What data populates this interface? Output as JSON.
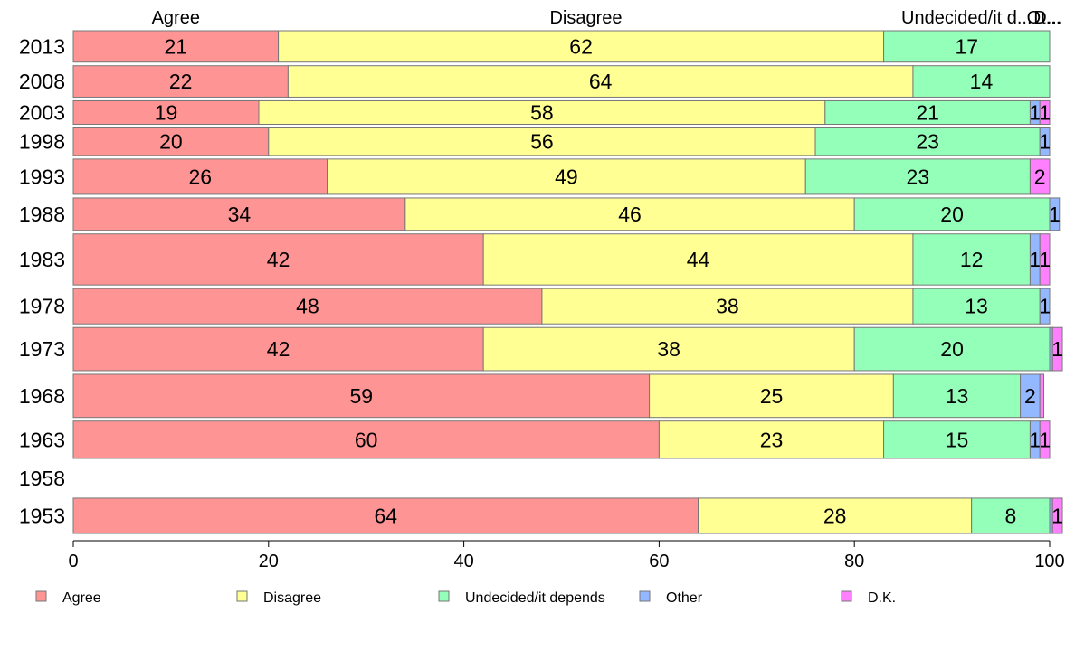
{
  "chart_data": {
    "type": "bar",
    "orientation": "horizontal",
    "stacked": true,
    "normalized_percent": true,
    "categories": [
      "2013",
      "2008",
      "2003",
      "1998",
      "1993",
      "1988",
      "1983",
      "1978",
      "1973",
      "1968",
      "1963",
      "1958",
      "1953"
    ],
    "series": [
      {
        "name": "Agree",
        "color": "#ff9494",
        "values": [
          21,
          22,
          19,
          20,
          26,
          34,
          42,
          48,
          42,
          59,
          60,
          null,
          64
        ]
      },
      {
        "name": "Disagree",
        "color": "#ffff94",
        "values": [
          62,
          64,
          58,
          56,
          49,
          46,
          44,
          38,
          38,
          25,
          23,
          null,
          28
        ]
      },
      {
        "name": "Undecided/it depends",
        "color": "#94ffb8",
        "values": [
          17,
          14,
          21,
          23,
          23,
          20,
          12,
          13,
          20,
          13,
          15,
          null,
          8
        ]
      },
      {
        "name": "Other",
        "color": "#94b8ff",
        "values": [
          0,
          0,
          1,
          1,
          0,
          1,
          1,
          1,
          0.3,
          2,
          1,
          null,
          0.3
        ]
      },
      {
        "name": "D.K.",
        "color": "#ff80ff",
        "values": [
          0,
          0,
          1,
          0,
          2,
          0,
          1,
          0,
          1,
          0.4,
          1,
          null,
          1
        ]
      }
    ],
    "data_labels": [
      [
        "21",
        "62",
        "17",
        "",
        ""
      ],
      [
        "22",
        "64",
        "14",
        "",
        ""
      ],
      [
        "19",
        "58",
        "21",
        "1",
        "1"
      ],
      [
        "20",
        "56",
        "23",
        "1",
        ""
      ],
      [
        "26",
        "49",
        "23",
        "",
        "2"
      ],
      [
        "34",
        "46",
        "20",
        "1",
        ""
      ],
      [
        "42",
        "44",
        "12",
        "1",
        "1"
      ],
      [
        "48",
        "38",
        "13",
        "1",
        ""
      ],
      [
        "42",
        "38",
        "20",
        "",
        "1"
      ],
      [
        "59",
        "25",
        "13",
        "2",
        ""
      ],
      [
        "60",
        "23",
        "15",
        "1",
        "1"
      ],
      [
        "",
        "",
        "",
        "",
        ""
      ],
      [
        "64",
        "28",
        "8",
        "",
        "1"
      ]
    ],
    "relative_bar_weights": [
      32,
      32,
      24,
      28,
      36,
      33,
      52,
      36,
      44,
      44,
      38,
      0,
      36
    ],
    "top_labels": [
      {
        "text": "Agree",
        "at": 10.5
      },
      {
        "text": "Disagree",
        "at": 52.5
      },
      {
        "text": "Undecided/it d...",
        "at": 91.5
      },
      {
        "text": "Ot...",
        "at": 99.4
      },
      {
        "text": "D...",
        "at": 99.8
      }
    ],
    "xlim": [
      0,
      100
    ],
    "xticks": [
      0,
      20,
      40,
      60,
      80,
      100
    ],
    "legend_position": "bottom",
    "grid": false
  }
}
